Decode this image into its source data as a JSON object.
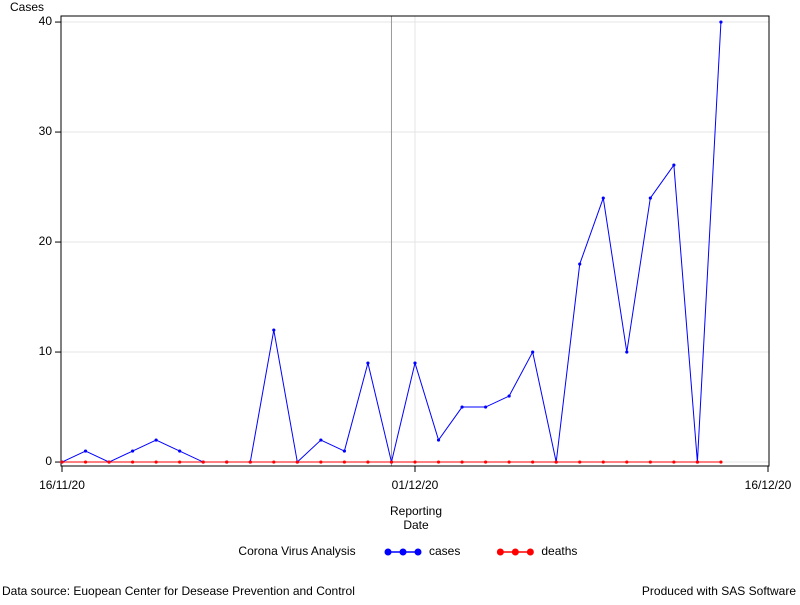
{
  "chart_data": {
    "type": "line",
    "y_label": "Cases",
    "x_label": [
      "Reporting",
      "Date"
    ],
    "x": [
      "16/11/20",
      "17/11/20",
      "18/11/20",
      "19/11/20",
      "20/11/20",
      "21/11/20",
      "22/11/20",
      "23/11/20",
      "24/11/20",
      "25/11/20",
      "26/11/20",
      "27/11/20",
      "28/11/20",
      "29/11/20",
      "30/11/20",
      "01/12/20",
      "02/12/20",
      "03/12/20",
      "04/12/20",
      "05/12/20",
      "06/12/20",
      "07/12/20",
      "08/12/20",
      "09/12/20",
      "10/12/20",
      "11/12/20",
      "12/12/20",
      "13/12/20",
      "14/12/20"
    ],
    "series": [
      {
        "name": "cases",
        "color": "#0000ff",
        "values": [
          0,
          1,
          0,
          1,
          2,
          1,
          0,
          0,
          0,
          12,
          0,
          2,
          1,
          9,
          0,
          9,
          2,
          5,
          5,
          6,
          10,
          0,
          18,
          24,
          10,
          24,
          27,
          0,
          40
        ]
      },
      {
        "name": "deaths",
        "color": "#ff0000",
        "values": [
          0,
          0,
          0,
          0,
          0,
          0,
          0,
          0,
          0,
          0,
          0,
          0,
          0,
          0,
          0,
          0,
          0,
          0,
          0,
          0,
          0,
          0,
          0,
          0,
          0,
          0,
          0,
          0,
          0
        ]
      }
    ],
    "xlim": [
      "16/11/20",
      "16/12/20"
    ],
    "xticks": [
      "16/11/20",
      "01/12/20",
      "16/12/20"
    ],
    "ylim": [
      -0.36,
      40.55
    ],
    "yticks": [
      0,
      10,
      20,
      30,
      40
    ],
    "grid": true,
    "reference_line": "30/11/20",
    "legend_title": "Corona Virus Analysis",
    "legend_position": "bottom",
    "footnote_left": "Data source: Euopean Center for Desease Prevention and Control",
    "footnote_right": "Produced with SAS Software"
  }
}
